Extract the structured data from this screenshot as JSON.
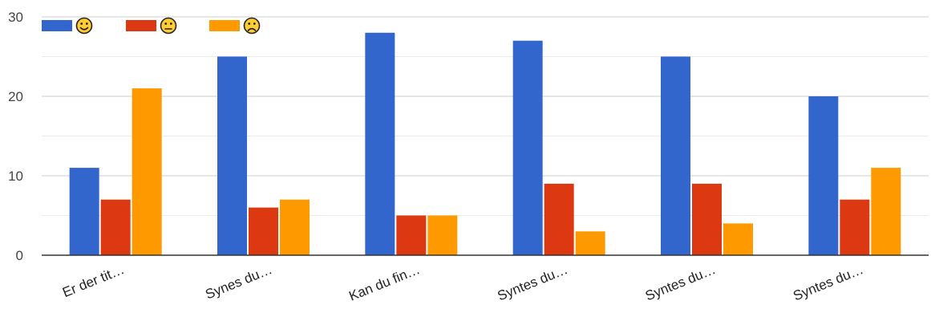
{
  "chart_data": {
    "type": "bar",
    "categories": [
      "Er der tit…",
      "Synes du…",
      "Kan du fin…",
      "Syntes du…",
      "Syntes du…",
      "Syntes du…"
    ],
    "series": [
      {
        "icon": "smile-face-icon",
        "color": "#3366cc",
        "values": [
          11,
          25,
          28,
          27,
          25,
          20
        ]
      },
      {
        "icon": "neutral-face-icon",
        "color": "#dc3912",
        "values": [
          7,
          6,
          5,
          9,
          9,
          7
        ]
      },
      {
        "icon": "frown-face-icon",
        "color": "#ff9900",
        "values": [
          21,
          7,
          5,
          3,
          4,
          11
        ]
      }
    ],
    "yticks": [
      0,
      10,
      20,
      30
    ],
    "ylim": [
      0,
      30
    ],
    "xlabel": "",
    "ylabel": "",
    "legend_position": "top-left",
    "grid": true
  }
}
